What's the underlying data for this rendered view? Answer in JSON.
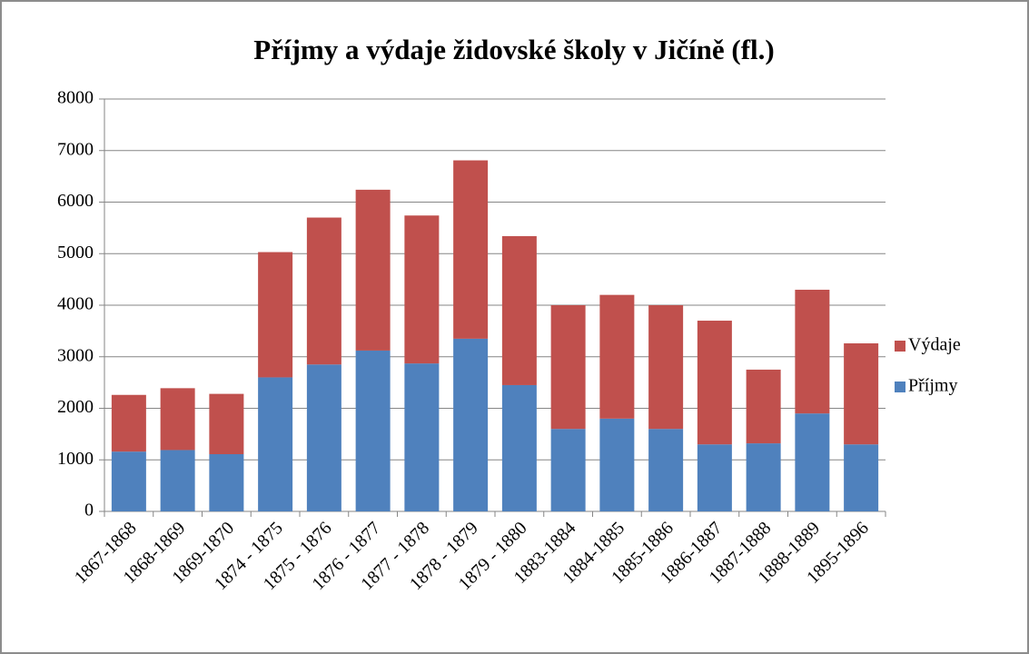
{
  "chart_data": {
    "type": "stacked_bar",
    "title": "Příjmy a výdaje židovské školy v Jičíně (fl.)",
    "categories": [
      "1867-1868",
      "1868-1869",
      "1869-1870",
      "1874 - 1875",
      "1875 - 1876",
      "1876 - 1877",
      "1877 - 1878",
      "1878 - 1879",
      "1879 - 1880",
      "1883-1884",
      "1884-1885",
      "1885-1886",
      "1886-1887",
      "1887-1888",
      "1888-1889",
      "1895-1896"
    ],
    "series": [
      {
        "name": "Příjmy",
        "color": "#4f81bd",
        "values": [
          1160,
          1190,
          1110,
          2600,
          2850,
          3120,
          2870,
          3350,
          2450,
          1600,
          1800,
          1600,
          1300,
          1320,
          1900,
          1300
        ]
      },
      {
        "name": "Výdaje",
        "color": "#c0504d",
        "values": [
          1100,
          1200,
          1170,
          2430,
          2850,
          3120,
          2870,
          3460,
          2890,
          2400,
          2400,
          2400,
          2400,
          1430,
          2400,
          1960
        ]
      }
    ],
    "ylim": [
      0,
      8000
    ],
    "yticks": [
      0,
      1000,
      2000,
      3000,
      4000,
      5000,
      6000,
      7000,
      8000
    ],
    "grid": true,
    "legend": "right"
  }
}
